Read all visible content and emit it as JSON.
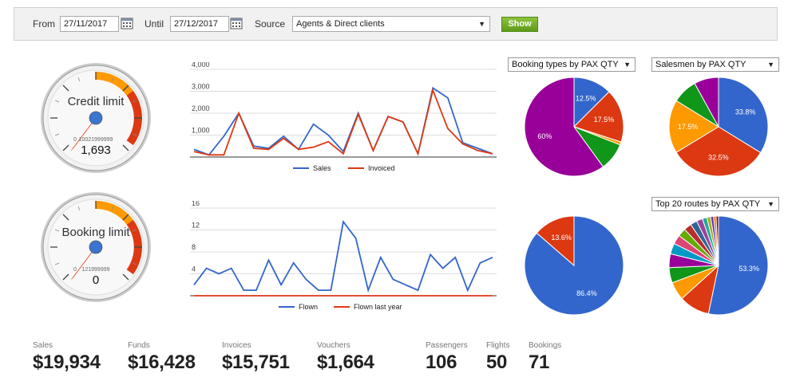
{
  "filters": {
    "from_label": "From",
    "from_value": "27/11/2017",
    "until_label": "Until",
    "until_value": "27/12/2017",
    "source_label": "Source",
    "source_value": "Agents & Direct clients",
    "show_label": "Show"
  },
  "gauges": [
    {
      "label": "Credit limit",
      "max_text": "10021999999",
      "zero": "0",
      "value_text": "1,693"
    },
    {
      "label": "Booking limit",
      "max_text": "121999999",
      "zero": "0",
      "value_text": "0"
    }
  ],
  "dropdowns": {
    "booking_types": "Booking types by PAX QTY",
    "salesmen": "Salesmen by PAX QTY",
    "routes": "Top 20 routes by PAX QTY"
  },
  "colors": {
    "blue": "#3366cc",
    "red": "#dc3912",
    "orange": "#ff9900",
    "green": "#109618",
    "purple": "#990099"
  },
  "chart_data": [
    {
      "type": "line",
      "y_ticks": [
        "4,000",
        "3,000",
        "2,000",
        "1,000"
      ],
      "ylim": [
        0,
        4000
      ],
      "legend_position": "bottom",
      "series": [
        {
          "name": "Sales",
          "color": "#3366cc",
          "values": [
            350,
            100,
            950,
            2000,
            500,
            400,
            950,
            350,
            1500,
            1000,
            250,
            2000,
            300,
            1850,
            1600,
            150,
            3150,
            2700,
            650,
            400,
            150
          ]
        },
        {
          "name": "Invoiced",
          "color": "#dc3912",
          "values": [
            250,
            100,
            100,
            2000,
            400,
            350,
            850,
            350,
            450,
            700,
            150,
            1950,
            300,
            1850,
            1600,
            150,
            3050,
            1300,
            600,
            300,
            150
          ]
        }
      ]
    },
    {
      "type": "line",
      "y_ticks": [
        "16",
        "12",
        "8",
        "4"
      ],
      "ylim": [
        0,
        16
      ],
      "legend_position": "bottom",
      "series": [
        {
          "name": "Flown",
          "color": "#3366cc",
          "values": [
            2,
            5,
            4,
            5,
            1,
            1,
            6.5,
            2,
            6,
            3,
            1,
            1,
            13.5,
            10.5,
            1,
            7,
            3,
            2,
            1,
            7.5,
            5,
            7,
            1,
            6,
            7
          ]
        },
        {
          "name": "Flown last year",
          "color": "#dc3912",
          "values": [
            0,
            0,
            0,
            0,
            0,
            0,
            0,
            0,
            0,
            0,
            0,
            0,
            0,
            0,
            0,
            0,
            0,
            0,
            0,
            0,
            0,
            0,
            0,
            0,
            0
          ]
        }
      ]
    },
    {
      "type": "pie",
      "slices": [
        {
          "value": 12.5,
          "label": "12.5%",
          "color": "#3366cc"
        },
        {
          "value": 17.5,
          "label": "17.5%",
          "color": "#dc3912"
        },
        {
          "value": 1,
          "label": "",
          "color": "#ff9900"
        },
        {
          "value": 9,
          "label": "",
          "color": "#109618"
        },
        {
          "value": 60,
          "label": "60%",
          "color": "#990099"
        }
      ]
    },
    {
      "type": "pie",
      "slices": [
        {
          "value": 33.8,
          "label": "33.8%",
          "color": "#3366cc"
        },
        {
          "value": 32.5,
          "label": "32.5%",
          "color": "#dc3912"
        },
        {
          "value": 17.5,
          "label": "17.5%",
          "color": "#ff9900"
        },
        {
          "value": 8.2,
          "label": "",
          "color": "#109618"
        },
        {
          "value": 8,
          "label": "",
          "color": "#990099"
        }
      ]
    },
    {
      "type": "pie",
      "slices": [
        {
          "value": 86.4,
          "label": "86.4%",
          "color": "#3366cc"
        },
        {
          "value": 13.6,
          "label": "13.6%",
          "color": "#dc3912"
        }
      ]
    },
    {
      "type": "pie",
      "slices": [
        {
          "value": 53.3,
          "label": "53.3%",
          "color": "#3366cc"
        },
        {
          "value": 10,
          "label": "",
          "color": "#dc3912"
        },
        {
          "value": 6,
          "label": "",
          "color": "#ff9900"
        },
        {
          "value": 5,
          "label": "",
          "color": "#109618"
        },
        {
          "value": 4.5,
          "label": "",
          "color": "#990099"
        },
        {
          "value": 3.5,
          "label": "",
          "color": "#0099c6"
        },
        {
          "value": 3,
          "label": "",
          "color": "#dd4477"
        },
        {
          "value": 2.7,
          "label": "",
          "color": "#66aa00"
        },
        {
          "value": 2.5,
          "label": "",
          "color": "#b82e2e"
        },
        {
          "value": 2.2,
          "label": "",
          "color": "#316395"
        },
        {
          "value": 2,
          "label": "",
          "color": "#994499"
        },
        {
          "value": 1.5,
          "label": "",
          "color": "#22aa99"
        },
        {
          "value": 1.2,
          "label": "",
          "color": "#aaaa11"
        },
        {
          "value": 1,
          "label": "",
          "color": "#6633cc"
        },
        {
          "value": 0.8,
          "label": "",
          "color": "#e67300"
        },
        {
          "value": 0.8,
          "label": "",
          "color": "#8b0707"
        }
      ]
    }
  ],
  "stats": [
    {
      "label": "Sales",
      "value": "$19,934"
    },
    {
      "label": "Funds",
      "value": "$16,428"
    },
    {
      "label": "Invoices",
      "value": "$15,751"
    },
    {
      "label": "Vouchers",
      "value": "$1,664"
    },
    {
      "label": "Passengers",
      "value": "106"
    },
    {
      "label": "Flights",
      "value": "50"
    },
    {
      "label": "Bookings",
      "value": "71"
    }
  ]
}
